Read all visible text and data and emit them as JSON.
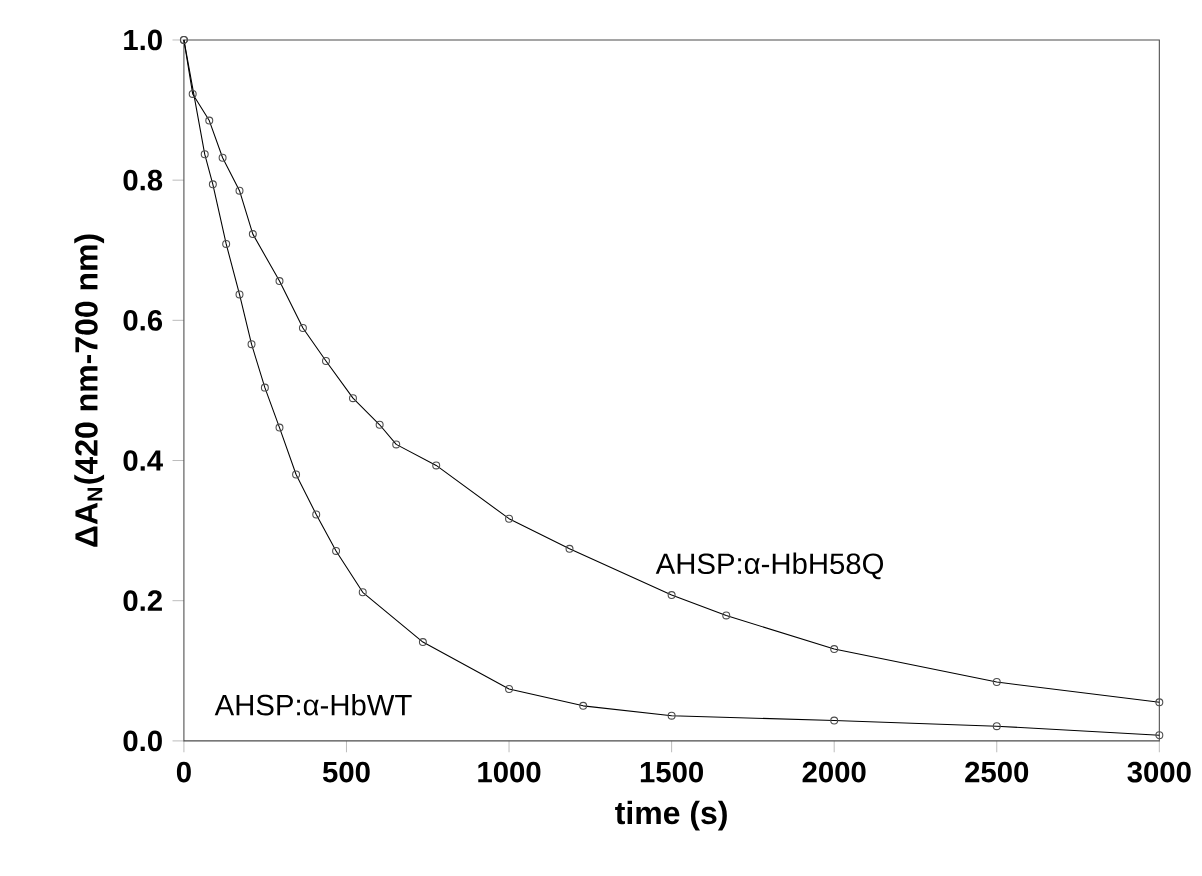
{
  "chart_data": {
    "type": "line",
    "xlabel": "time (s)",
    "ylabel": "ΔA$_{N}$(420 nm-700 nm)",
    "xlim": [
      0,
      3000
    ],
    "ylim": [
      0,
      1.0
    ],
    "xticks": [
      0,
      500,
      1000,
      1500,
      2000,
      2500,
      3000
    ],
    "yticks": [
      {
        "value": 0,
        "label": "0.0"
      },
      {
        "value": 0.2,
        "label": "0.2"
      },
      {
        "value": 0.4,
        "label": "0.4"
      },
      {
        "value": 0.6,
        "label": "0.6"
      },
      {
        "value": 0.8,
        "label": "0.8"
      },
      {
        "value": 1.0,
        "label": "1.0"
      }
    ],
    "grid": false,
    "marker": "circle",
    "line_style": "solid",
    "series": [
      {
        "name": "AHSP:α-HbH58Q",
        "color": "#000000",
        "x": [
          0,
          27,
          78,
          119,
          171,
          212,
          294,
          366,
          437,
          520,
          602,
          653,
          776,
          1000,
          1186,
          1500,
          1668,
          2000,
          2500,
          3000
        ],
        "values": [
          1.0,
          0.923,
          0.885,
          0.832,
          0.785,
          0.723,
          0.656,
          0.589,
          0.542,
          0.489,
          0.451,
          0.423,
          0.393,
          0.317,
          0.274,
          0.208,
          0.179,
          0.131,
          0.084,
          0.055
        ]
      },
      {
        "name": "AHSP:α-HbWT",
        "color": "#000000",
        "x": [
          0,
          64,
          89,
          130,
          171,
          208,
          249,
          294,
          345,
          407,
          468,
          550,
          735,
          1000,
          1228,
          1500,
          2000,
          2500,
          3000
        ],
        "values": [
          1.0,
          0.837,
          0.794,
          0.709,
          0.637,
          0.566,
          0.504,
          0.447,
          0.38,
          0.323,
          0.271,
          0.212,
          0.141,
          0.074,
          0.05,
          0.036,
          0.029,
          0.021,
          0.008
        ]
      }
    ]
  }
}
